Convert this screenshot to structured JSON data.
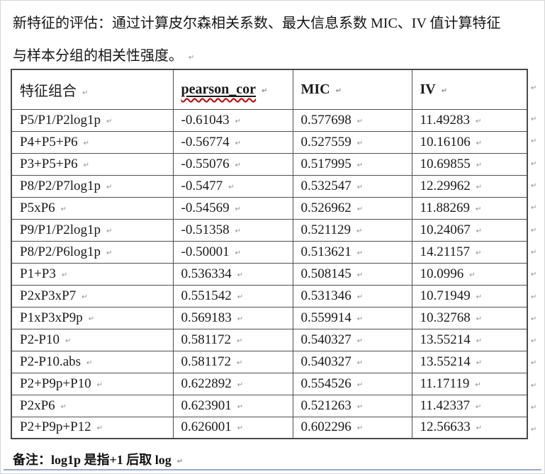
{
  "page": {
    "intro": {
      "line1": "新特征的评估：通过计算皮尔森相关系数、最大信息系数 MIC、IV 值计算特征",
      "line2": "与样本分组的相关性强度。"
    },
    "note": "备注：log1p 是指+1 后取 log",
    "marks": {
      "end_mark": "↵"
    }
  },
  "table": {
    "headers": [
      "特征组合",
      "pearson_cor",
      "MIC",
      "IV"
    ],
    "rows": [
      [
        "P5/P1/P2log1p",
        "-0.61043",
        "0.577698",
        "11.49283"
      ],
      [
        "P4+P5+P6",
        "-0.56774",
        "0.527559",
        "10.16106"
      ],
      [
        "P3+P5+P6",
        "-0.55076",
        "0.517995",
        "10.69855"
      ],
      [
        "P8/P2/P7log1p",
        "-0.5477",
        "0.532547",
        "12.29962"
      ],
      [
        "P5xP6",
        "-0.54569",
        "0.526962",
        "11.88269"
      ],
      [
        "P9/P1/P2log1p",
        "-0.51358",
        "0.521129",
        "10.24067"
      ],
      [
        "P8/P2/P6log1p",
        "-0.50001",
        "0.513621",
        "14.21157"
      ],
      [
        "P1+P3",
        "0.536334",
        "0.508145",
        "10.0996"
      ],
      [
        "P2xP3xP7",
        "0.551542",
        "0.531346",
        "10.71949"
      ],
      [
        "P1xP3xP9p",
        "0.569183",
        "0.559914",
        "10.32768"
      ],
      [
        "P2-P10",
        "0.581172",
        "0.540327",
        "13.55214"
      ],
      [
        "P2-P10.abs",
        "0.581172",
        "0.540327",
        "13.55214"
      ],
      [
        "P2+P9p+P10",
        "0.622892",
        "0.554526",
        "11.17119"
      ],
      [
        "P2xP6",
        "0.623901",
        "0.521263",
        "11.42337"
      ],
      [
        "P2+P9p+P12",
        "0.626001",
        "0.602296",
        "12.56633"
      ]
    ]
  },
  "colors": {
    "accent_line": "#93aac8",
    "spellcheck_underline": "#c00000",
    "table_border": "#4f4f4f"
  }
}
